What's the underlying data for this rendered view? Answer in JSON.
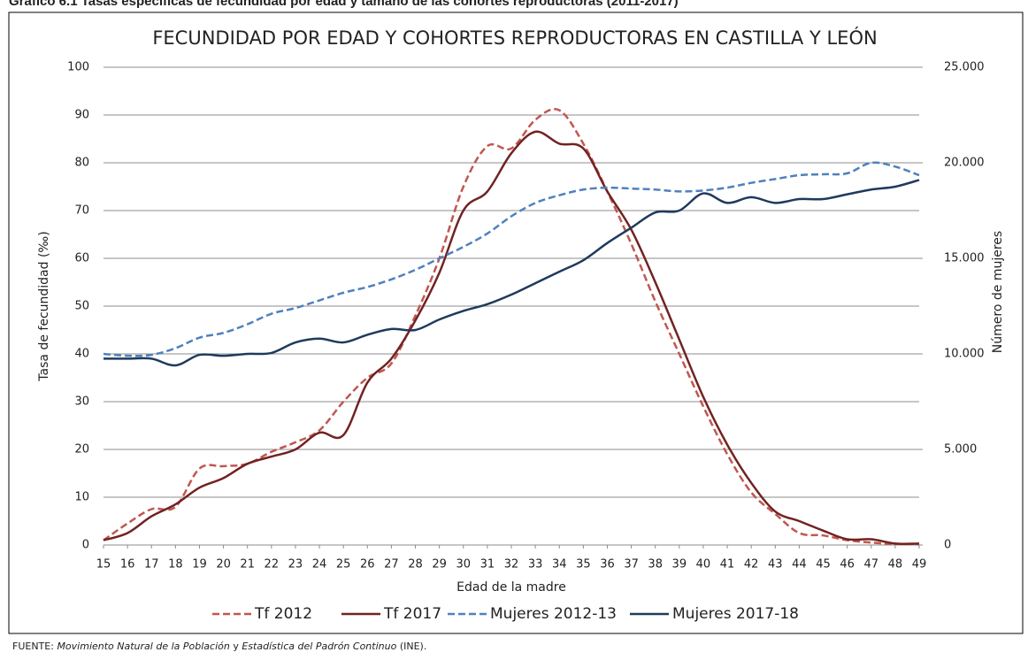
{
  "chart_data": {
    "type": "line",
    "caption": "Gráfico 6.1 Tasas específicas de fecundidad por edad y tamaño de las cohortes reproductoras (2011-2017)",
    "title": "FECUNDIDAD POR EDAD Y COHORTES REPRODUCTORAS EN CASTILLA Y LEÓN",
    "x_label": "Edad de la madre",
    "y_label": "Tasa de fecundidad (‰)",
    "y2_label": "Número de mujeres",
    "x": [
      15,
      16,
      17,
      18,
      19,
      20,
      21,
      22,
      23,
      24,
      25,
      26,
      27,
      28,
      29,
      30,
      31,
      32,
      33,
      34,
      35,
      36,
      37,
      38,
      39,
      40,
      41,
      42,
      43,
      44,
      45,
      46,
      47,
      48,
      49
    ],
    "xlim": [
      15,
      49
    ],
    "xticks": [
      15,
      16,
      17,
      18,
      19,
      20,
      21,
      22,
      23,
      24,
      25,
      26,
      27,
      28,
      29,
      30,
      31,
      32,
      33,
      34,
      35,
      36,
      37,
      38,
      39,
      40,
      41,
      42,
      43,
      44,
      45,
      46,
      47,
      48,
      49
    ],
    "ylim": [
      0,
      100
    ],
    "yticks": [
      0,
      10,
      20,
      30,
      40,
      50,
      60,
      70,
      80,
      90,
      100
    ],
    "y2lim": [
      0,
      25000
    ],
    "y2ticks": [
      0,
      {
        "value": 5000,
        "label": "5.000"
      },
      {
        "value": 10000,
        "label": "10.000"
      },
      {
        "value": 15000,
        "label": "15.000"
      },
      {
        "value": 20000,
        "label": "20.000"
      },
      {
        "value": 25000,
        "label": "25.000"
      }
    ],
    "grid": true,
    "legend": "bottom",
    "series": [
      {
        "name": "Tf 2012",
        "color": "#c0574f",
        "dash": true,
        "values": [
          1,
          4.5,
          7.5,
          8,
          16,
          16.5,
          17,
          19.5,
          21.5,
          24,
          30,
          35,
          38,
          48,
          60,
          75,
          83.5,
          83,
          89,
          91,
          84,
          74,
          63,
          51,
          40,
          29,
          19,
          11,
          6.5,
          2.5,
          2,
          1,
          0.5,
          0.2,
          0.2
        ]
      },
      {
        "name": "Tf 2017",
        "color": "#722222",
        "dash": false,
        "values": [
          1,
          2.5,
          6,
          8.5,
          12,
          14,
          17,
          18.5,
          20,
          23.5,
          23,
          34,
          39,
          47,
          57,
          70,
          74,
          82,
          86.5,
          84,
          83,
          74,
          66,
          55,
          43,
          31,
          21,
          13,
          7,
          5,
          3,
          1.2,
          1.2,
          0.3,
          0.3
        ]
      },
      {
        "name": "Mujeres 2012-13",
        "color": "#4f81bd",
        "dash": true,
        "axis": "y2",
        "values": [
          10000,
          9900,
          9950,
          10300,
          10850,
          11100,
          11550,
          12100,
          12400,
          12800,
          13200,
          13500,
          13900,
          14400,
          15000,
          15600,
          16300,
          17200,
          17900,
          18300,
          18600,
          18700,
          18650,
          18600,
          18500,
          18550,
          18700,
          18950,
          19150,
          19350,
          19400,
          19450,
          20000,
          19800,
          19350
        ]
      },
      {
        "name": "Mujeres 2017-18",
        "color": "#1f3a5c",
        "dash": false,
        "axis": "y2",
        "values": [
          9750,
          9750,
          9750,
          9400,
          9950,
          9900,
          10000,
          10050,
          10600,
          10800,
          10600,
          11000,
          11300,
          11250,
          11800,
          12250,
          12600,
          13100,
          13700,
          14300,
          14900,
          15800,
          16600,
          17400,
          17500,
          18400,
          17900,
          18200,
          17900,
          18100,
          18100,
          18350,
          18600,
          18750,
          19100
        ]
      }
    ],
    "source": {
      "prefix": "FUENTE: ",
      "italic1": "Movimiento Natural de la Población",
      "mid": " y ",
      "italic2": "Estadística del Padrón Continuo",
      "suffix": " (INE)."
    }
  }
}
